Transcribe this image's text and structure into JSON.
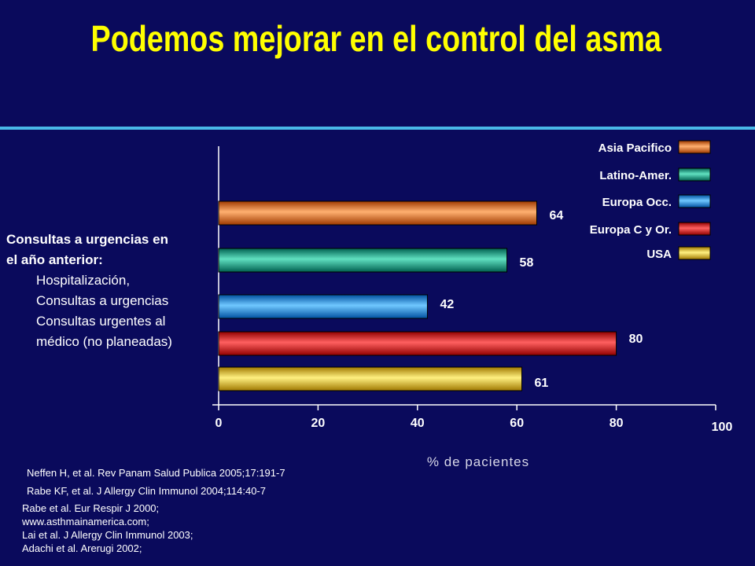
{
  "title": "Podemos mejorar en el control del asma",
  "category_label": {
    "head_line1": "Consultas a urgencias en",
    "head_line2": "el año anterior:",
    "items": [
      "Hospitalización,",
      "Consultas a urgencias",
      "Consultas urgentes al",
      "médico (no planeadas)"
    ]
  },
  "references_a": [
    "Neffen H, et al. Rev Panam Salud Publica 2005;17:191-7",
    "Rabe KF, et al. J Allergy Clin Immunol 2004;114:40-7"
  ],
  "references_b": [
    "Rabe et al. Eur Respir J 2000;",
    "www.asthmainamerica.com;",
    "Lai et al. J Allergy Clin Immunol 2003;",
    "Adachi et al. Arerugi 2002;"
  ],
  "colors": {
    "background": "#0a0a5c",
    "title": "#ffff00",
    "rule": "#49b8e8"
  },
  "chart_data": {
    "type": "bar",
    "orientation": "horizontal",
    "xlabel": "% de pacientes",
    "xlim": [
      0,
      100
    ],
    "ticks": [
      "0",
      "20",
      "40",
      "60",
      "80",
      "100"
    ],
    "grid": false,
    "legend_position": "top-right",
    "series": [
      {
        "name": "Asia Pacifico",
        "value": 64,
        "label": "64",
        "color": "#f06a10",
        "light": "#ffb070",
        "dark": "#a03a00"
      },
      {
        "name": "Latino-Amer.",
        "value": 58,
        "label": "58",
        "color": "#10a080",
        "light": "#60e0c0",
        "dark": "#006050"
      },
      {
        "name": "Europa Occ.",
        "value": 42,
        "label": "42",
        "color": "#1a88f0",
        "light": "#70c8ff",
        "dark": "#0050a0"
      },
      {
        "name": "Europa C y Or.",
        "value": 80,
        "label": "80",
        "color": "#f00000",
        "light": "#ff6060",
        "dark": "#900000"
      },
      {
        "name": "USA",
        "value": 61,
        "label": "61",
        "color": "#e8c020",
        "light": "#fff080",
        "dark": "#a07800"
      }
    ]
  }
}
